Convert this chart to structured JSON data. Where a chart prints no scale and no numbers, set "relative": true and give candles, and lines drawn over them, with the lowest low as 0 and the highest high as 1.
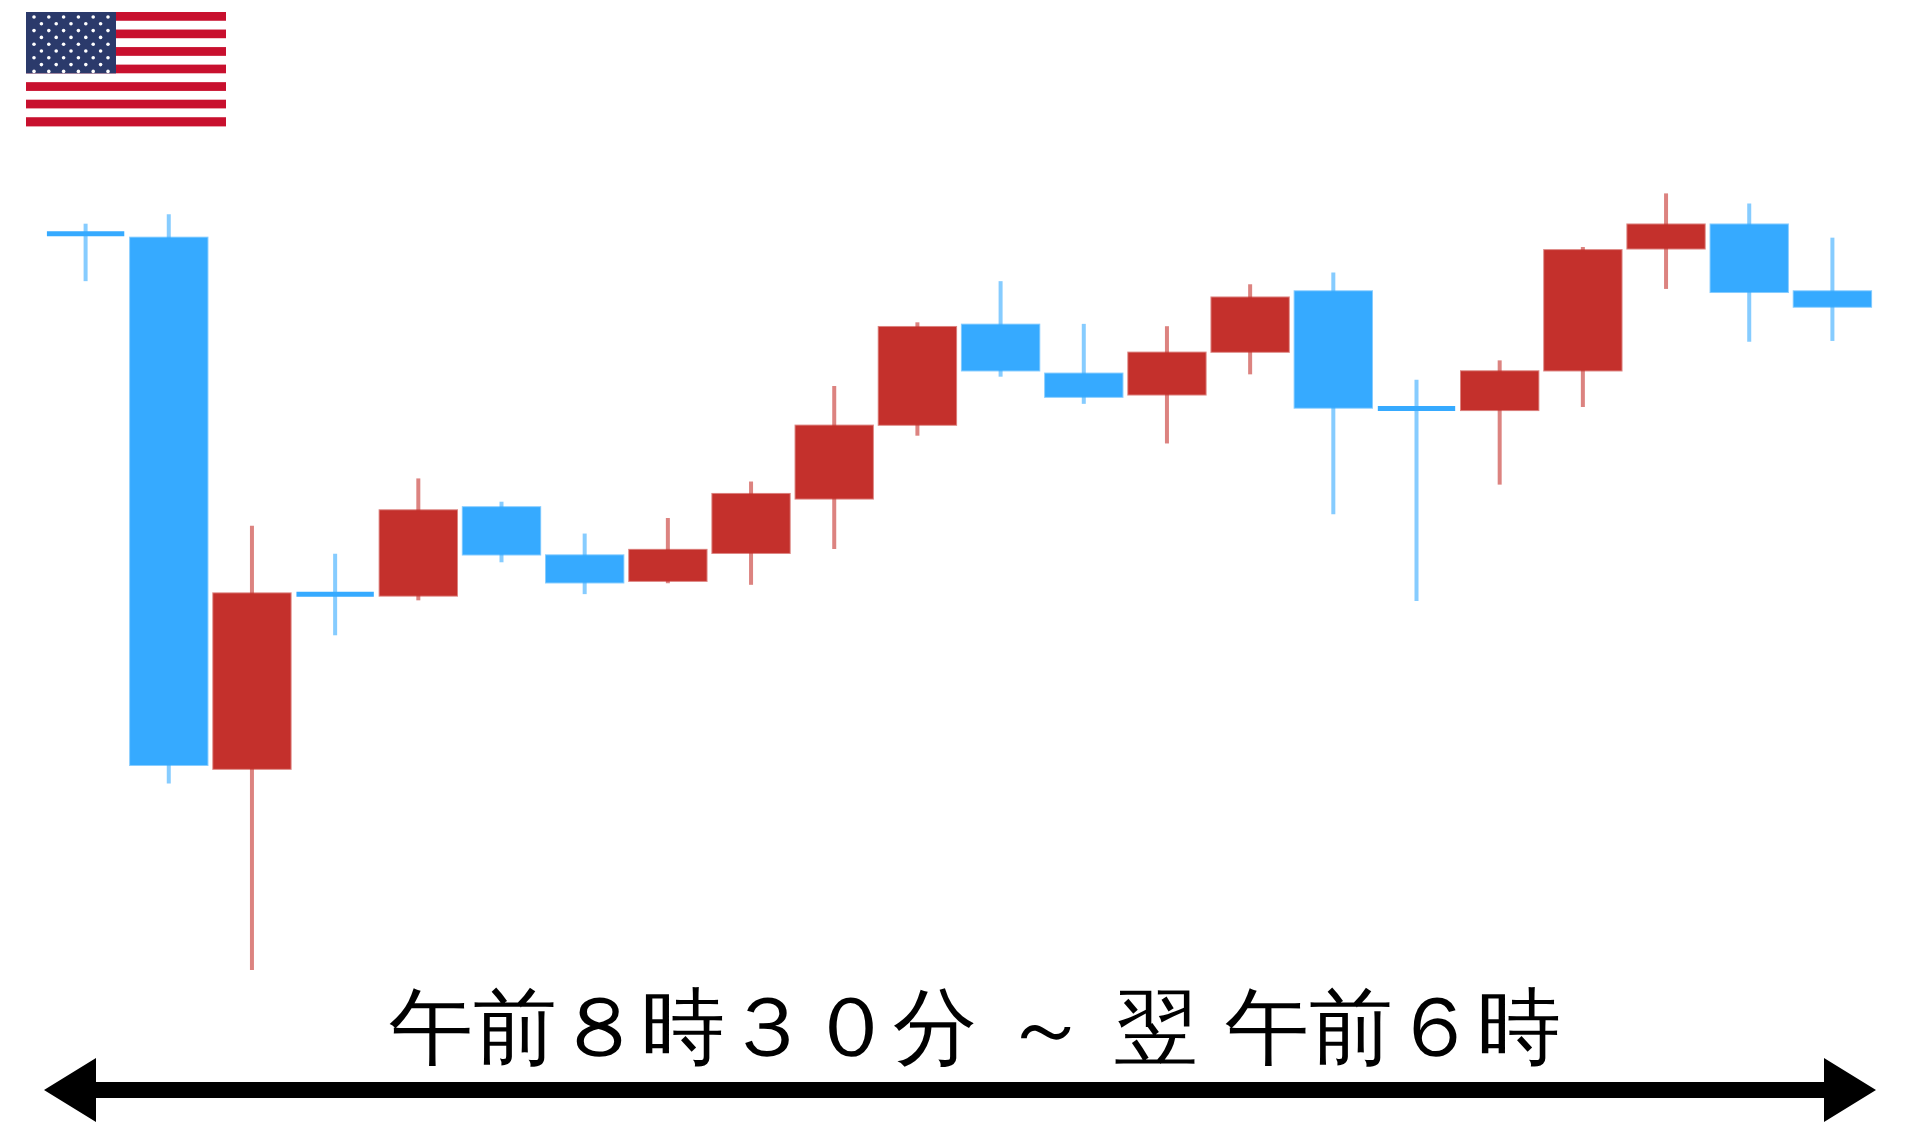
{
  "chart_data": {
    "type": "candlestick",
    "relative": true,
    "xlabel": "午前８時３０分 ～ 翌 午前６時",
    "categories": [
      null,
      null,
      null,
      null,
      null,
      null,
      null,
      null,
      null,
      null,
      null,
      null,
      null,
      null,
      null,
      null,
      null,
      null,
      null,
      null,
      null,
      null
    ],
    "ohlc": [
      [
        0.948,
        0.961,
        0.887,
        0.948
      ],
      [
        0.943,
        0.973,
        0.24,
        0.264
      ],
      [
        0.259,
        0.572,
        0,
        0.485
      ],
      [
        0.484,
        0.536,
        0.431,
        0.484
      ],
      [
        0.482,
        0.633,
        0.476,
        0.592
      ],
      [
        0.596,
        0.603,
        0.525,
        0.535
      ],
      [
        0.534,
        0.562,
        0.484,
        0.499
      ],
      [
        0.501,
        0.582,
        0.498,
        0.541
      ],
      [
        0.537,
        0.629,
        0.496,
        0.613
      ],
      [
        0.607,
        0.752,
        0.542,
        0.701
      ],
      [
        0.702,
        0.834,
        0.688,
        0.828
      ],
      [
        0.831,
        0.887,
        0.764,
        0.772
      ],
      [
        0.768,
        0.832,
        0.729,
        0.738
      ],
      [
        0.741,
        0.829,
        0.678,
        0.795
      ],
      [
        0.796,
        0.883,
        0.767,
        0.866
      ],
      [
        0.874,
        0.898,
        0.587,
        0.724
      ],
      [
        0.723,
        0.76,
        0.475,
        0.723
      ],
      [
        0.721,
        0.785,
        0.625,
        0.771
      ],
      [
        0.772,
        0.931,
        0.725,
        0.927
      ],
      [
        0.929,
        1,
        0.877,
        0.96
      ],
      [
        0.96,
        0.987,
        0.809,
        0.873
      ],
      [
        0.874,
        0.943,
        0.81,
        0.854
      ]
    ],
    "colors": [
      "#36aaff",
      "#36aaff",
      "#c4302c",
      "#36aaff",
      "#c4302c",
      "#36aaff",
      "#36aaff",
      "#c4302c",
      "#c4302c",
      "#c4302c",
      "#c4302c",
      "#36aaff",
      "#36aaff",
      "#c4302c",
      "#c4302c",
      "#36aaff",
      "#36aaff",
      "#c4302c",
      "#c4302c",
      "#c4302c",
      "#36aaff",
      "#36aaff"
    ]
  }
}
